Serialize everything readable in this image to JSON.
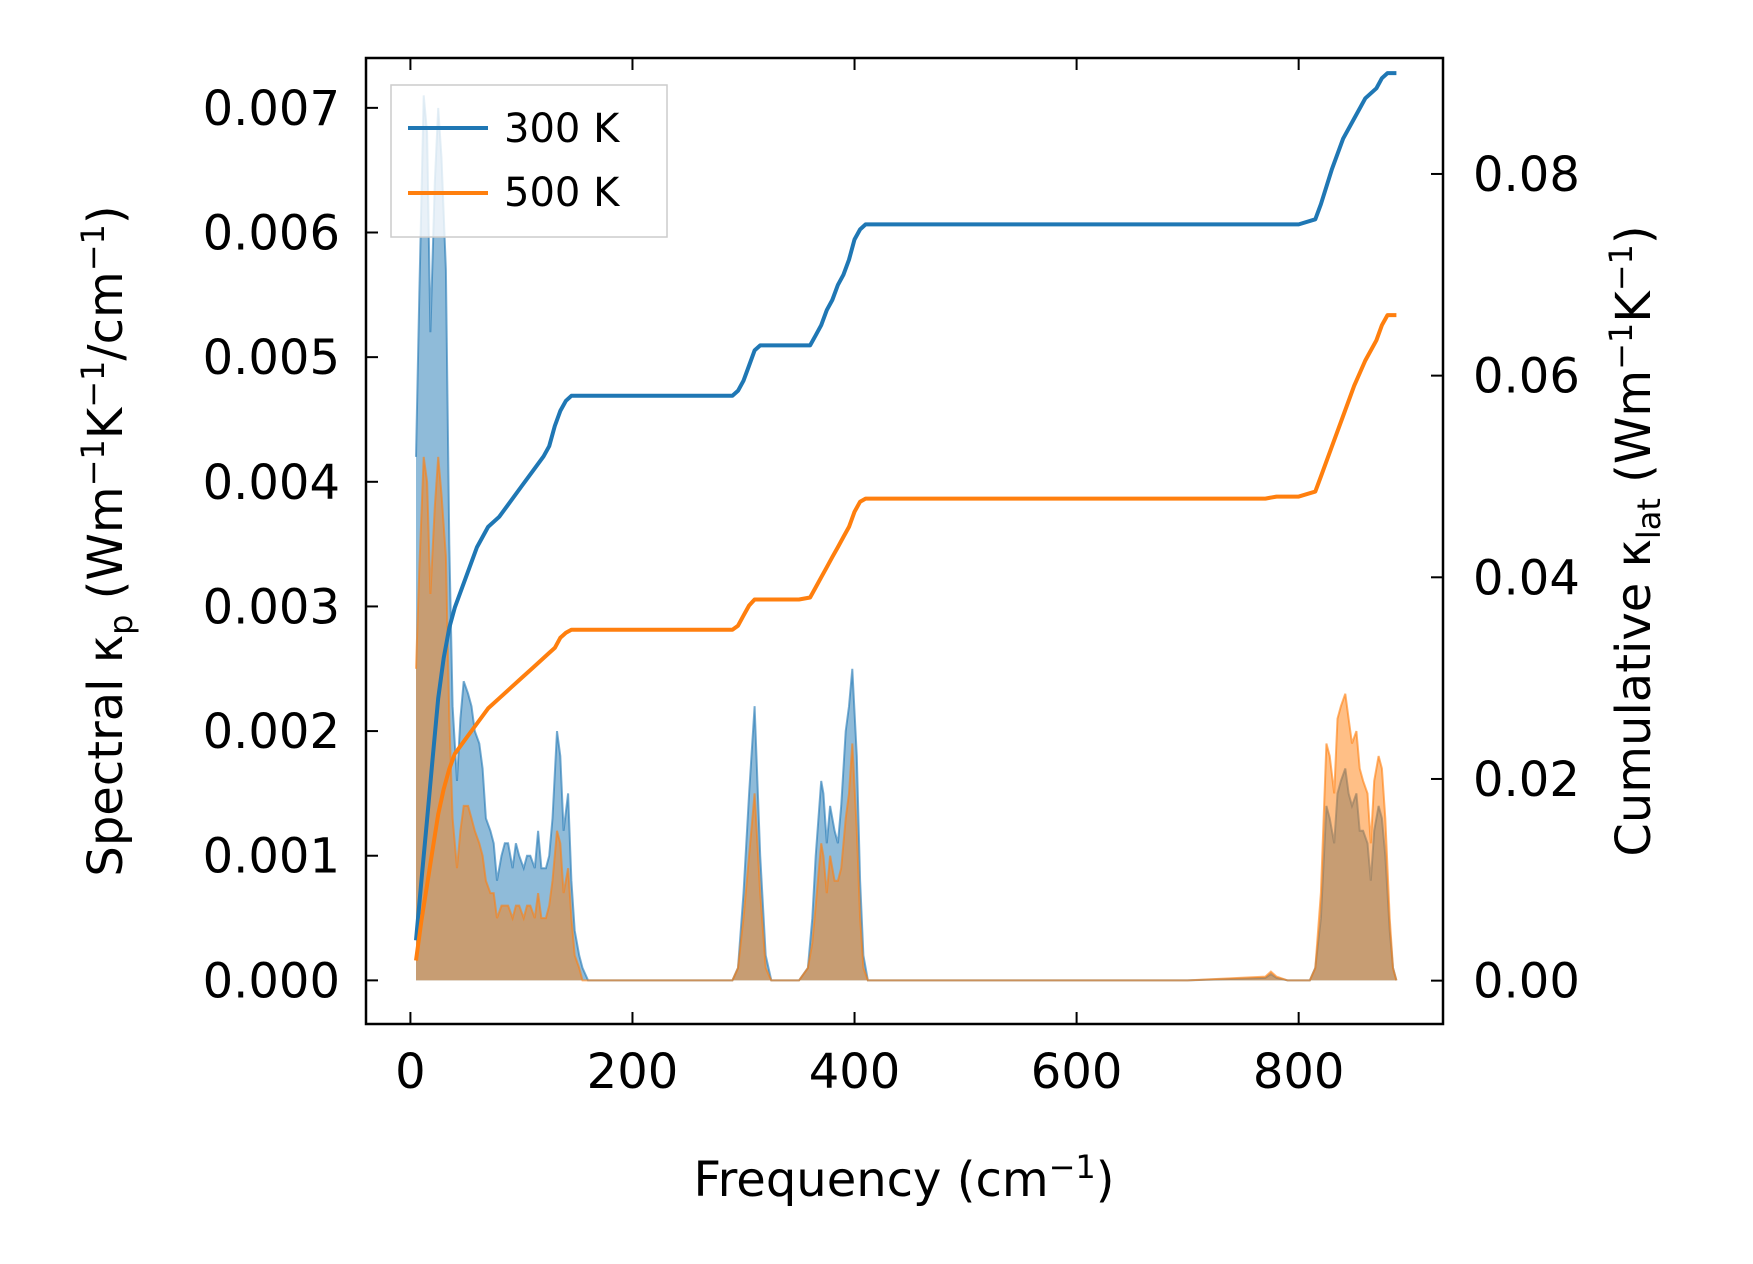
{
  "chart_data": {
    "type": "area",
    "xlabel": "Frequency (cm",
    "xlabel_sup": "−1",
    "xlabel_tail": ")",
    "ylabel_left": {
      "pre": "Spectral κ",
      "sub": "p",
      "mid": " (Wm",
      "sup1": "−1",
      "k": "K",
      "sup2": "−1",
      "slash": "/cm",
      "sup3": "−1",
      "tail": ")"
    },
    "ylabel_right": {
      "pre": "Cumulative κ",
      "sub": "lat",
      "mid": " (Wm",
      "sup1": "−1",
      "k": "K",
      "sup2": "−1",
      "tail": ")"
    },
    "xlim": [
      -40,
      930
    ],
    "ylim_left": [
      -0.00035,
      0.0074
    ],
    "ylim_right": [
      -0.0043,
      0.0915
    ],
    "x_ticks": [
      0,
      200,
      400,
      600,
      800
    ],
    "x_tick_labels": [
      "0",
      "200",
      "400",
      "600",
      "800"
    ],
    "y_left_ticks": [
      0.0,
      0.001,
      0.002,
      0.003,
      0.004,
      0.005,
      0.006,
      0.007
    ],
    "y_left_tick_labels": [
      "0.000",
      "0.001",
      "0.002",
      "0.003",
      "0.004",
      "0.005",
      "0.006",
      "0.007"
    ],
    "y_right_ticks": [
      0.0,
      0.02,
      0.04,
      0.06,
      0.08
    ],
    "y_right_tick_labels": [
      "0.00",
      "0.02",
      "0.04",
      "0.06",
      "0.08"
    ],
    "legend": {
      "placement": "top-left",
      "entries": [
        "300 K",
        "500 K"
      ]
    },
    "series": [
      {
        "name": "300 K",
        "color": "#1f77b4",
        "spectral": {
          "x": [
            5,
            8,
            12,
            15,
            18,
            22,
            25,
            28,
            32,
            35,
            38,
            42,
            45,
            48,
            52,
            55,
            58,
            62,
            65,
            68,
            72,
            75,
            78,
            82,
            85,
            88,
            92,
            95,
            98,
            102,
            105,
            108,
            112,
            115,
            118,
            122,
            125,
            128,
            132,
            135,
            138,
            142,
            145,
            148,
            152,
            155,
            160,
            180,
            200,
            250,
            290,
            295,
            300,
            305,
            310,
            315,
            320,
            325,
            330,
            350,
            358,
            362,
            365,
            370,
            372,
            375,
            378,
            382,
            385,
            388,
            392,
            395,
            398,
            402,
            405,
            408,
            412,
            416,
            450,
            500,
            600,
            700,
            770,
            775,
            780,
            790,
            800,
            810,
            815,
            820,
            825,
            828,
            832,
            835,
            838,
            842,
            845,
            848,
            852,
            855,
            858,
            862,
            865,
            868,
            872,
            875,
            878,
            882,
            885,
            888
          ],
          "y": [
            0.0042,
            0.0055,
            0.0071,
            0.0068,
            0.0052,
            0.0064,
            0.007,
            0.0066,
            0.0057,
            0.0035,
            0.0022,
            0.0016,
            0.0021,
            0.0024,
            0.0023,
            0.0022,
            0.002,
            0.0019,
            0.0017,
            0.0013,
            0.0012,
            0.0011,
            0.0008,
            0.001,
            0.0011,
            0.0011,
            0.0009,
            0.0011,
            0.001,
            0.0009,
            0.001,
            0.001,
            0.0009,
            0.0012,
            0.0009,
            0.0009,
            0.001,
            0.0013,
            0.002,
            0.0018,
            0.0012,
            0.0015,
            0.0008,
            0.0004,
            0.0002,
            0.0001,
            0.0,
            0.0,
            0.0,
            0.0,
            0.0,
            0.0001,
            0.0007,
            0.0015,
            0.0022,
            0.001,
            0.0002,
            0.0,
            0.0,
            0.0,
            0.0001,
            0.0005,
            0.001,
            0.0016,
            0.0015,
            0.0011,
            0.0014,
            0.0012,
            0.0011,
            0.0014,
            0.002,
            0.0022,
            0.0025,
            0.0018,
            0.0008,
            0.0002,
            0.0,
            0.0,
            0.0,
            0.0,
            0.0,
            0.0,
            2e-05,
            5e-05,
            2e-05,
            0.0,
            0.0,
            0.0,
            0.0001,
            0.0005,
            0.0014,
            0.0013,
            0.0011,
            0.0015,
            0.0016,
            0.0017,
            0.0015,
            0.0014,
            0.0015,
            0.0012,
            0.0012,
            0.0011,
            0.0008,
            0.0012,
            0.0014,
            0.0013,
            0.001,
            0.0004,
            0.0001,
            0.0
          ]
        },
        "cumulative": {
          "x": [
            5,
            10,
            15,
            20,
            25,
            30,
            35,
            40,
            50,
            60,
            70,
            80,
            90,
            100,
            110,
            120,
            125,
            130,
            135,
            140,
            145,
            150,
            200,
            250,
            290,
            295,
            300,
            305,
            310,
            315,
            320,
            350,
            360,
            365,
            370,
            375,
            380,
            385,
            390,
            395,
            400,
            405,
            410,
            500,
            600,
            700,
            770,
            780,
            800,
            815,
            820,
            830,
            840,
            850,
            860,
            870,
            875,
            880,
            888
          ],
          "y": [
            0.004,
            0.01,
            0.016,
            0.022,
            0.028,
            0.032,
            0.035,
            0.037,
            0.04,
            0.043,
            0.045,
            0.046,
            0.0475,
            0.049,
            0.0505,
            0.052,
            0.053,
            0.055,
            0.0565,
            0.0575,
            0.058,
            0.058,
            0.058,
            0.058,
            0.058,
            0.0585,
            0.0595,
            0.061,
            0.0625,
            0.063,
            0.063,
            0.063,
            0.063,
            0.064,
            0.065,
            0.0665,
            0.0675,
            0.069,
            0.07,
            0.0715,
            0.0735,
            0.0745,
            0.075,
            0.075,
            0.075,
            0.075,
            0.075,
            0.075,
            0.075,
            0.0755,
            0.077,
            0.0805,
            0.0835,
            0.0855,
            0.0875,
            0.0885,
            0.0895,
            0.09,
            0.09
          ]
        }
      },
      {
        "name": "500 K",
        "color": "#ff7f0e",
        "spectral": {
          "x": [
            5,
            8,
            12,
            15,
            18,
            22,
            25,
            28,
            32,
            35,
            38,
            42,
            45,
            48,
            52,
            55,
            58,
            62,
            65,
            68,
            72,
            75,
            78,
            82,
            85,
            88,
            92,
            95,
            98,
            102,
            105,
            108,
            112,
            115,
            118,
            122,
            125,
            128,
            132,
            135,
            138,
            142,
            145,
            148,
            152,
            155,
            160,
            180,
            200,
            250,
            290,
            295,
            300,
            305,
            310,
            315,
            320,
            325,
            330,
            350,
            358,
            362,
            365,
            370,
            372,
            375,
            378,
            382,
            385,
            388,
            392,
            395,
            398,
            402,
            405,
            408,
            412,
            416,
            450,
            500,
            600,
            700,
            770,
            775,
            780,
            790,
            800,
            810,
            815,
            820,
            825,
            828,
            832,
            835,
            838,
            842,
            845,
            848,
            852,
            855,
            858,
            862,
            865,
            868,
            872,
            875,
            878,
            882,
            885,
            888
          ],
          "y": [
            0.0025,
            0.0033,
            0.0042,
            0.004,
            0.0031,
            0.0038,
            0.0042,
            0.0039,
            0.0034,
            0.0021,
            0.0013,
            0.0009,
            0.0012,
            0.0014,
            0.0014,
            0.0013,
            0.0012,
            0.0011,
            0.001,
            0.0008,
            0.0007,
            0.0007,
            0.0005,
            0.0006,
            0.0006,
            0.0006,
            0.0005,
            0.0006,
            0.0006,
            0.0005,
            0.0006,
            0.0006,
            0.0005,
            0.0007,
            0.0005,
            0.0005,
            0.0006,
            0.0008,
            0.0012,
            0.0011,
            0.0007,
            0.0009,
            0.0005,
            0.0002,
            0.0001,
            0.0,
            0.0,
            0.0,
            0.0,
            0.0,
            0.0,
            0.0001,
            0.0005,
            0.001,
            0.0015,
            0.0007,
            0.0001,
            0.0,
            0.0,
            0.0,
            0.0001,
            0.0003,
            0.0006,
            0.0011,
            0.001,
            0.0007,
            0.001,
            0.0008,
            0.0008,
            0.0009,
            0.0013,
            0.0015,
            0.0019,
            0.0012,
            0.0005,
            0.0001,
            0.0,
            0.0,
            0.0,
            0.0,
            0.0,
            0.0,
            3e-05,
            7e-05,
            3e-05,
            0.0,
            0.0,
            0.0,
            0.0001,
            0.0007,
            0.0019,
            0.0018,
            0.0015,
            0.0021,
            0.0022,
            0.0023,
            0.0021,
            0.0019,
            0.002,
            0.0017,
            0.0016,
            0.0015,
            0.0011,
            0.0016,
            0.0018,
            0.0017,
            0.0013,
            0.0005,
            0.0001,
            0.0
          ]
        },
        "cumulative": {
          "x": [
            5,
            10,
            15,
            20,
            25,
            30,
            35,
            40,
            50,
            60,
            70,
            80,
            90,
            100,
            110,
            120,
            125,
            130,
            135,
            140,
            145,
            150,
            200,
            250,
            290,
            295,
            300,
            305,
            310,
            315,
            320,
            350,
            360,
            365,
            370,
            375,
            380,
            385,
            390,
            395,
            400,
            405,
            410,
            500,
            600,
            700,
            770,
            780,
            800,
            815,
            820,
            830,
            840,
            850,
            860,
            870,
            875,
            880,
            888
          ],
          "y": [
            0.002,
            0.006,
            0.0095,
            0.013,
            0.0165,
            0.019,
            0.021,
            0.0225,
            0.024,
            0.0255,
            0.027,
            0.028,
            0.029,
            0.03,
            0.031,
            0.032,
            0.0325,
            0.033,
            0.034,
            0.0345,
            0.0348,
            0.0348,
            0.0348,
            0.0348,
            0.0348,
            0.0352,
            0.0362,
            0.0372,
            0.0378,
            0.0378,
            0.0378,
            0.0378,
            0.038,
            0.039,
            0.04,
            0.041,
            0.042,
            0.043,
            0.044,
            0.045,
            0.0465,
            0.0475,
            0.0478,
            0.0478,
            0.0478,
            0.0478,
            0.0478,
            0.048,
            0.048,
            0.0485,
            0.05,
            0.053,
            0.056,
            0.059,
            0.0615,
            0.0635,
            0.065,
            0.066,
            0.066
          ]
        }
      }
    ]
  }
}
